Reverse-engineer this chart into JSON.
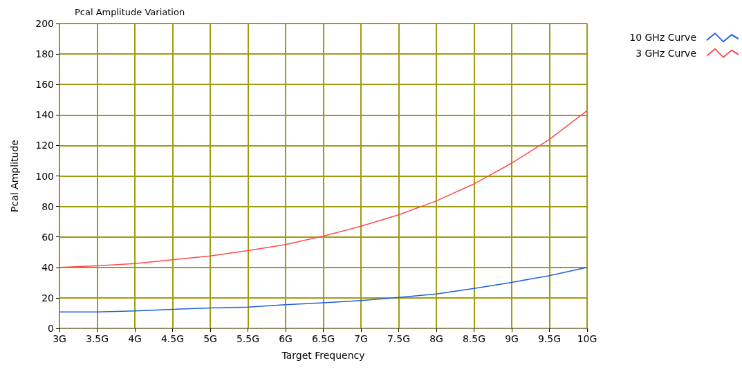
{
  "chart_data": {
    "type": "line",
    "title": "Pcal Amplitude Variation",
    "xlabel": "Target Frequency",
    "ylabel": "Pcal Amplitude",
    "x": [
      3,
      3.5,
      4,
      4.5,
      5,
      5.5,
      6,
      6.5,
      7,
      7.5,
      8,
      8.5,
      9,
      9.5,
      10
    ],
    "series": [
      {
        "name": "10 GHz Curve",
        "color": "#1f5fe0",
        "values": [
          10.8,
          10.8,
          11.5,
          12.5,
          13.4,
          14,
          15.5,
          16.8,
          18.3,
          20.3,
          22.6,
          26.2,
          30.2,
          34.6,
          40
        ]
      },
      {
        "name": "3 GHz Curve",
        "color": "#ff4a4a",
        "values": [
          40,
          41,
          42.5,
          45,
          47.5,
          51,
          55,
          60.5,
          67,
          74.5,
          83.6,
          94.8,
          108.4,
          124,
          142.8
        ]
      }
    ],
    "xlim": [
      3,
      10
    ],
    "xticks": [
      {
        "value": 3,
        "label": "3G"
      },
      {
        "value": 3.5,
        "label": "3.5G"
      },
      {
        "value": 4,
        "label": "4G"
      },
      {
        "value": 4.5,
        "label": "4.5G"
      },
      {
        "value": 5,
        "label": "5G"
      },
      {
        "value": 5.5,
        "label": "5.5G"
      },
      {
        "value": 6,
        "label": "6G"
      },
      {
        "value": 6.5,
        "label": "6.5G"
      },
      {
        "value": 7,
        "label": "7G"
      },
      {
        "value": 7.5,
        "label": "7.5G"
      },
      {
        "value": 8,
        "label": "8G"
      },
      {
        "value": 8.5,
        "label": "8.5G"
      },
      {
        "value": 9,
        "label": "9G"
      },
      {
        "value": 9.5,
        "label": "9.5G"
      },
      {
        "value": 10,
        "label": "10G"
      }
    ],
    "ylim": [
      0,
      200
    ],
    "yticks": [
      0,
      20,
      40,
      60,
      80,
      100,
      120,
      140,
      160,
      180,
      200
    ],
    "grid": true,
    "legend": "top right",
    "marker": "none",
    "line_style": "solid"
  }
}
